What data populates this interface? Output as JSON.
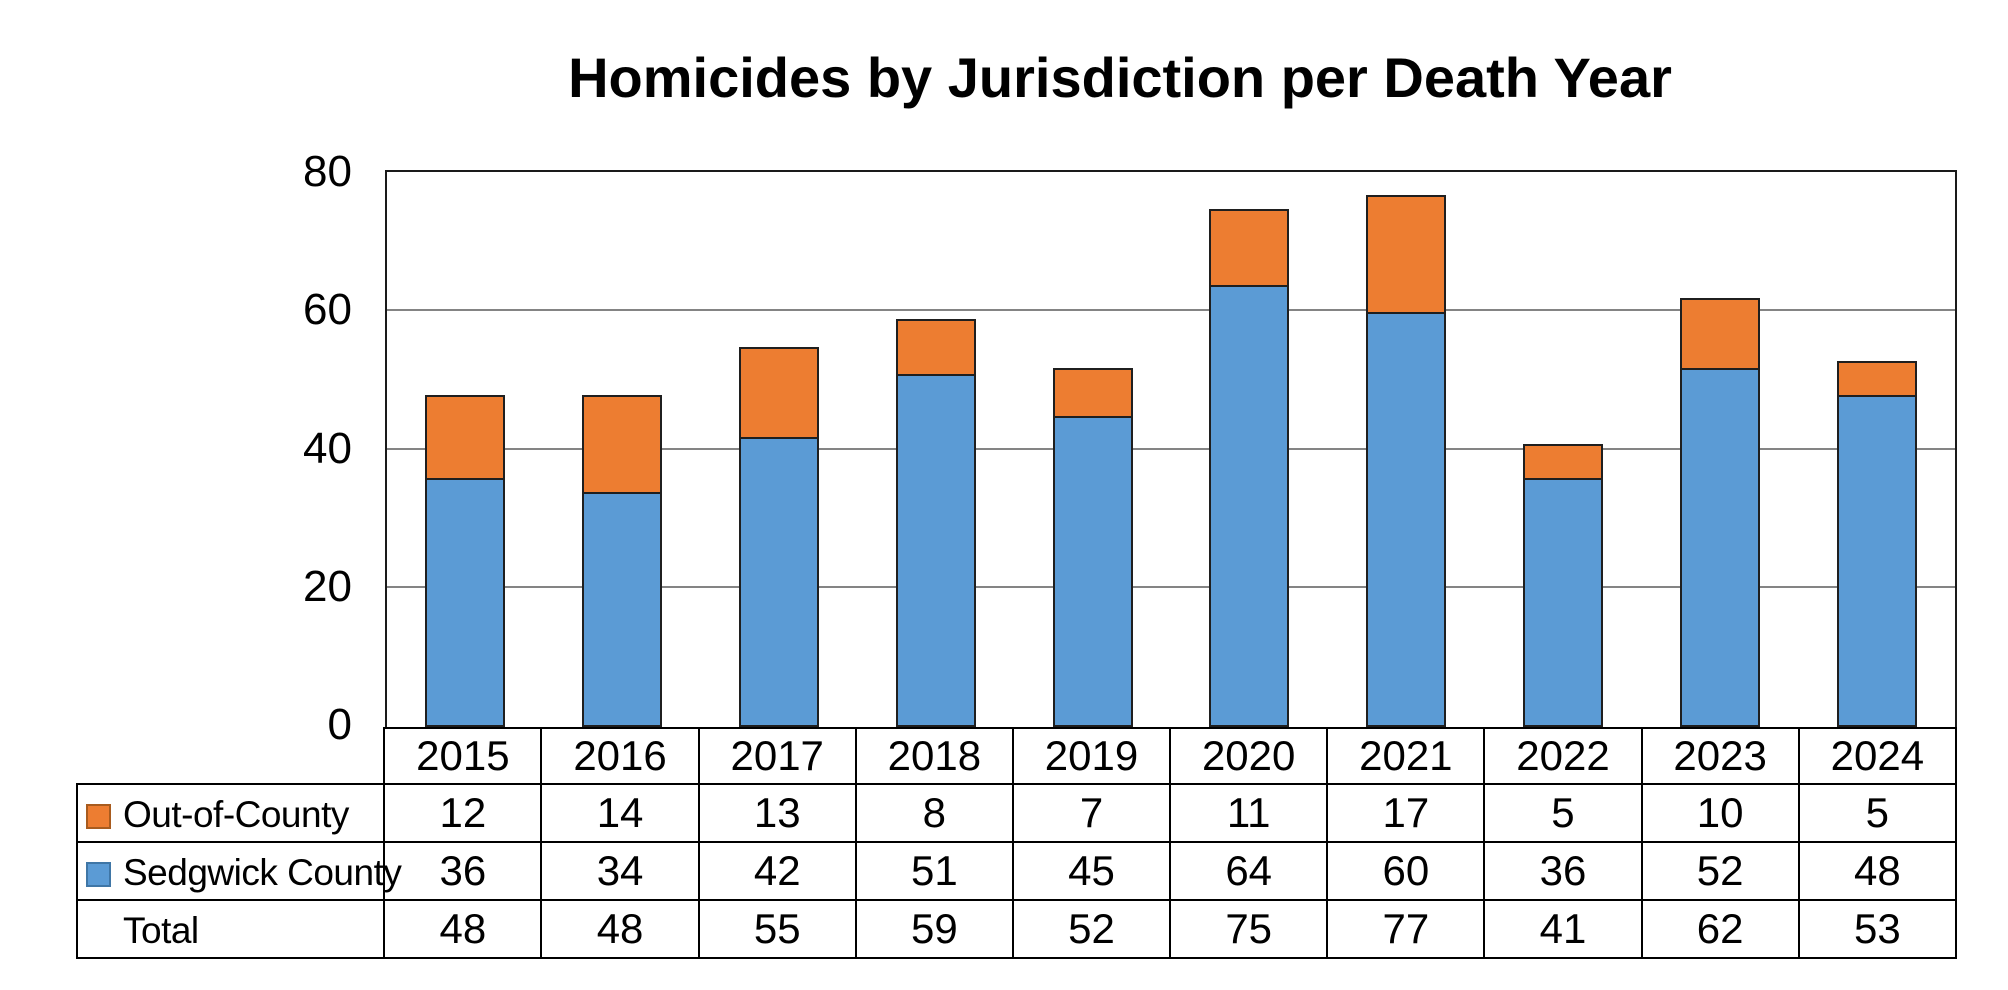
{
  "chart_data": {
    "type": "bar",
    "stacked": true,
    "title": "Homicides by Jurisdiction per Death Year",
    "categories": [
      "2015",
      "2016",
      "2017",
      "2018",
      "2019",
      "2020",
      "2021",
      "2022",
      "2023",
      "2024"
    ],
    "series": [
      {
        "name": "Out-of-County",
        "color": "#ED7D31",
        "swatch_border_color": "#A85B1E",
        "values": [
          12,
          14,
          13,
          8,
          7,
          11,
          17,
          5,
          10,
          5
        ]
      },
      {
        "name": "Sedgwick County",
        "color": "#5B9BD5",
        "swatch_border_color": "#3F76A6",
        "values": [
          36,
          34,
          42,
          51,
          45,
          64,
          60,
          36,
          52,
          48
        ]
      }
    ],
    "total_row": {
      "label": "Total",
      "values": [
        48,
        48,
        55,
        59,
        52,
        75,
        77,
        41,
        62,
        53
      ]
    },
    "xlabel": "",
    "ylabel": "",
    "ylim": [
      0,
      80
    ],
    "yticks": [
      0,
      20,
      40,
      60,
      80
    ],
    "grid": "horizontal-major",
    "legend_position": "table-left",
    "colors": {
      "bar_border": "#1f1f1f",
      "gridline": "#848484",
      "axis": "#1a1a1a",
      "table_border": "#000000",
      "text": "#000000",
      "background": "#ffffff"
    }
  }
}
